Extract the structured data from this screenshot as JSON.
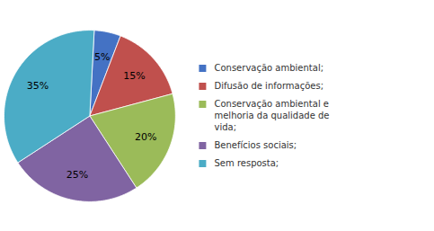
{
  "chart_data": {
    "type": "pie",
    "categories": [
      "Conservação ambiental;",
      "Difusão de informações;",
      "Conservação ambiental e\nmelhoria da qualidade de\nvida;",
      "Benefícios sociais;",
      "Sem resposta;"
    ],
    "values": [
      5,
      15,
      20,
      25,
      35
    ],
    "value_labels": [
      "5%",
      "15%",
      "20%",
      "25%",
      "35%"
    ],
    "colors": [
      "#4472C4",
      "#C0504D",
      "#9BBB59",
      "#8064A2",
      "#4BACC6"
    ],
    "data_labels": true,
    "legend": "right"
  }
}
